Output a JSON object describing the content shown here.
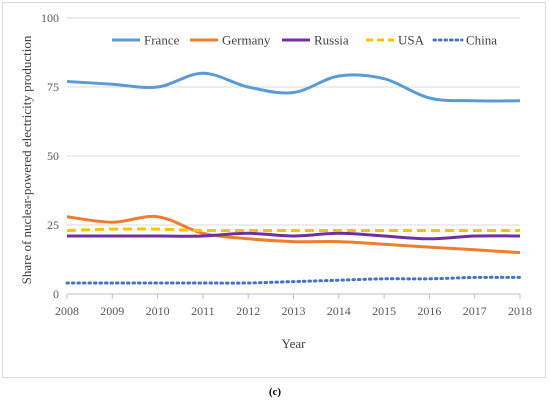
{
  "caption": "(c)",
  "chart_data": {
    "type": "line",
    "xlabel": "Year",
    "ylabel": "Share of nuclear-powered electricity production",
    "x": [
      2008,
      2009,
      2010,
      2011,
      2012,
      2013,
      2014,
      2015,
      2016,
      2017,
      2018
    ],
    "ylim": [
      0,
      100
    ],
    "yticks": [
      0,
      25,
      50,
      75,
      100
    ],
    "grid": "horizontal",
    "legend_position": "top",
    "series": [
      {
        "name": "France",
        "color": "#5b9bd5",
        "style": "solid",
        "values": [
          77,
          76,
          75,
          80,
          75,
          73,
          79,
          78,
          71,
          70,
          70
        ]
      },
      {
        "name": "Germany",
        "color": "#ed7d31",
        "style": "solid",
        "values": [
          28,
          26,
          28,
          22,
          20,
          19,
          19,
          18,
          17,
          16,
          15
        ]
      },
      {
        "name": "Russia",
        "color": "#7030a0",
        "style": "solid",
        "values": [
          21,
          21,
          21,
          21,
          22,
          21,
          22,
          21,
          20,
          21,
          21
        ]
      },
      {
        "name": "USA",
        "color": "#ffc000",
        "style": "dashed",
        "values": [
          23,
          23.5,
          23.5,
          23,
          23,
          23,
          23,
          23,
          23,
          23,
          23
        ]
      },
      {
        "name": "China",
        "color": "#4472c4",
        "style": "dotted",
        "values": [
          4,
          4,
          4,
          4,
          4,
          4.5,
          5,
          5.5,
          5.5,
          6,
          6
        ]
      }
    ]
  }
}
